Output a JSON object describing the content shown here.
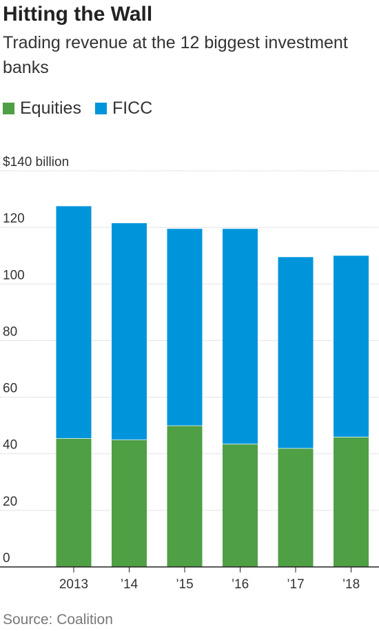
{
  "title": "Hitting the Wall",
  "subtitle": "Trading revenue at the 12 biggest investment banks",
  "source": "Source: Coalition",
  "chart_data": {
    "type": "bar",
    "stacked": true,
    "categories": [
      "2013",
      "’14",
      "’15",
      "’16",
      "’17",
      "’18"
    ],
    "series": [
      {
        "name": "Equities",
        "color": "#4f9f45",
        "values": [
          45.5,
          45,
          50,
          43.5,
          42,
          46
        ]
      },
      {
        "name": "FICC",
        "color": "#0095db",
        "values": [
          82,
          76.5,
          69.5,
          76,
          67.5,
          64
        ]
      }
    ],
    "ylim": [
      0,
      140
    ],
    "yticks": [
      0,
      20,
      40,
      60,
      80,
      100,
      120,
      140
    ],
    "ytick_labels": [
      "0",
      "20",
      "40",
      "60",
      "80",
      "100",
      "120",
      "$140 billion"
    ],
    "grid": true,
    "legend": "top-left"
  }
}
